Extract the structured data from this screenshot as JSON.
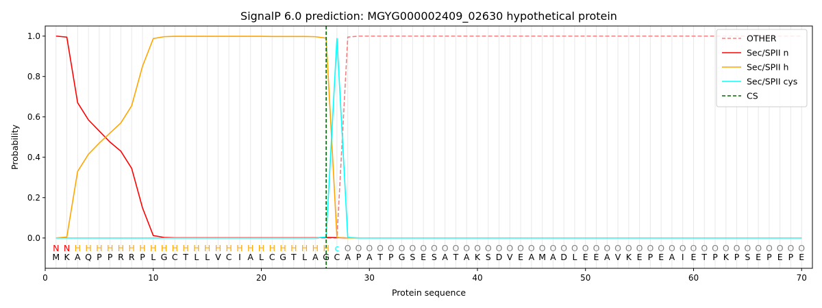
{
  "chart_data": {
    "type": "line",
    "title": "SignalP 6.0 prediction: MGYG000002409_02630 hypothetical protein",
    "xlabel": "Protein sequence",
    "ylabel": "Probability",
    "xlim": [
      0,
      71
    ],
    "ylim": [
      -0.15,
      1.05
    ],
    "xticks": [
      "0",
      "10",
      "20",
      "30",
      "40",
      "50",
      "60",
      "70"
    ],
    "yticks": [
      "0.0",
      "0.2",
      "0.4",
      "0.6",
      "0.8",
      "1.0"
    ],
    "legend_position": "top-right",
    "sequence": "MKAQPPRRPLGCTLLVCIALCGTLAGCAPATPGSESATAKSDVEAMADLEEAVKEPEAIETPKPSEPEPE",
    "labels": "NNHHHHHHHHHHHHHHHHHHHHHHHHcOOOOOOOOOOOOOOOOOOOOOOOOOOOOOOOOOOOOOOOOOOO",
    "label_colors": {
      "N": "#ff0000",
      "H": "#ffa500",
      "c": "#00ffff",
      "O": "#808080"
    },
    "cleavage_site": 26,
    "series": [
      {
        "name": "OTHER",
        "color": "#f08080",
        "dash": true,
        "values": [
          0,
          0,
          0,
          0,
          0,
          0,
          0,
          0,
          0,
          0,
          0,
          0,
          0,
          0,
          0,
          0,
          0,
          0,
          0,
          0,
          0,
          0,
          0,
          0,
          0,
          0,
          0,
          0.995,
          1,
          1,
          1,
          1,
          1,
          1,
          1,
          1,
          1,
          1,
          1,
          1,
          1,
          1,
          1,
          1,
          1,
          1,
          1,
          1,
          1,
          1,
          1,
          1,
          1,
          1,
          1,
          1,
          1,
          1,
          1,
          1,
          1,
          1,
          1,
          1,
          1,
          1,
          1,
          1,
          1,
          1
        ]
      },
      {
        "name": "Sec/SPII n",
        "color": "#ff0000",
        "dash": false,
        "values": [
          1.0,
          0.995,
          0.67,
          0.585,
          0.53,
          0.475,
          0.43,
          0.345,
          0.15,
          0.012,
          0.003,
          0.001,
          0.001,
          0.001,
          0.001,
          0.001,
          0.001,
          0.001,
          0.001,
          0.001,
          0.001,
          0.001,
          0.001,
          0.001,
          0.001,
          0.003,
          0.002,
          0,
          0,
          0,
          0,
          0,
          0,
          0,
          0,
          0,
          0,
          0,
          0,
          0,
          0,
          0,
          0,
          0,
          0,
          0,
          0,
          0,
          0,
          0,
          0,
          0,
          0,
          0,
          0,
          0,
          0,
          0,
          0,
          0,
          0,
          0,
          0,
          0,
          0,
          0,
          0,
          0,
          0,
          0
        ]
      },
      {
        "name": "Sec/SPII h",
        "color": "#ffa500",
        "dash": false,
        "values": [
          0,
          0.005,
          0.33,
          0.415,
          0.47,
          0.52,
          0.57,
          0.655,
          0.85,
          0.988,
          0.997,
          0.999,
          0.999,
          0.999,
          0.999,
          0.999,
          0.999,
          0.999,
          0.999,
          0.999,
          0.998,
          0.998,
          0.998,
          0.998,
          0.997,
          0.99,
          0.003,
          0,
          0,
          0,
          0,
          0,
          0,
          0,
          0,
          0,
          0,
          0,
          0,
          0,
          0,
          0,
          0,
          0,
          0,
          0,
          0,
          0,
          0,
          0,
          0,
          0,
          0,
          0,
          0,
          0,
          0,
          0,
          0,
          0,
          0,
          0,
          0,
          0,
          0,
          0,
          0,
          0,
          0,
          0
        ]
      },
      {
        "name": "Sec/SPII cys",
        "color": "#00ffff",
        "dash": false,
        "values": [
          0,
          0,
          0,
          0,
          0,
          0,
          0,
          0,
          0,
          0,
          0,
          0,
          0,
          0,
          0,
          0,
          0,
          0,
          0,
          0,
          0,
          0,
          0,
          0,
          0,
          0.005,
          0.99,
          0.003,
          0,
          0,
          0,
          0,
          0,
          0,
          0,
          0,
          0,
          0,
          0,
          0,
          0,
          0,
          0,
          0,
          0,
          0,
          0,
          0,
          0,
          0,
          0,
          0,
          0,
          0,
          0,
          0,
          0,
          0,
          0,
          0,
          0,
          0,
          0,
          0,
          0,
          0,
          0,
          0,
          0,
          0
        ]
      },
      {
        "name": "CS",
        "color": "#006400",
        "dash": true,
        "values": []
      }
    ]
  }
}
